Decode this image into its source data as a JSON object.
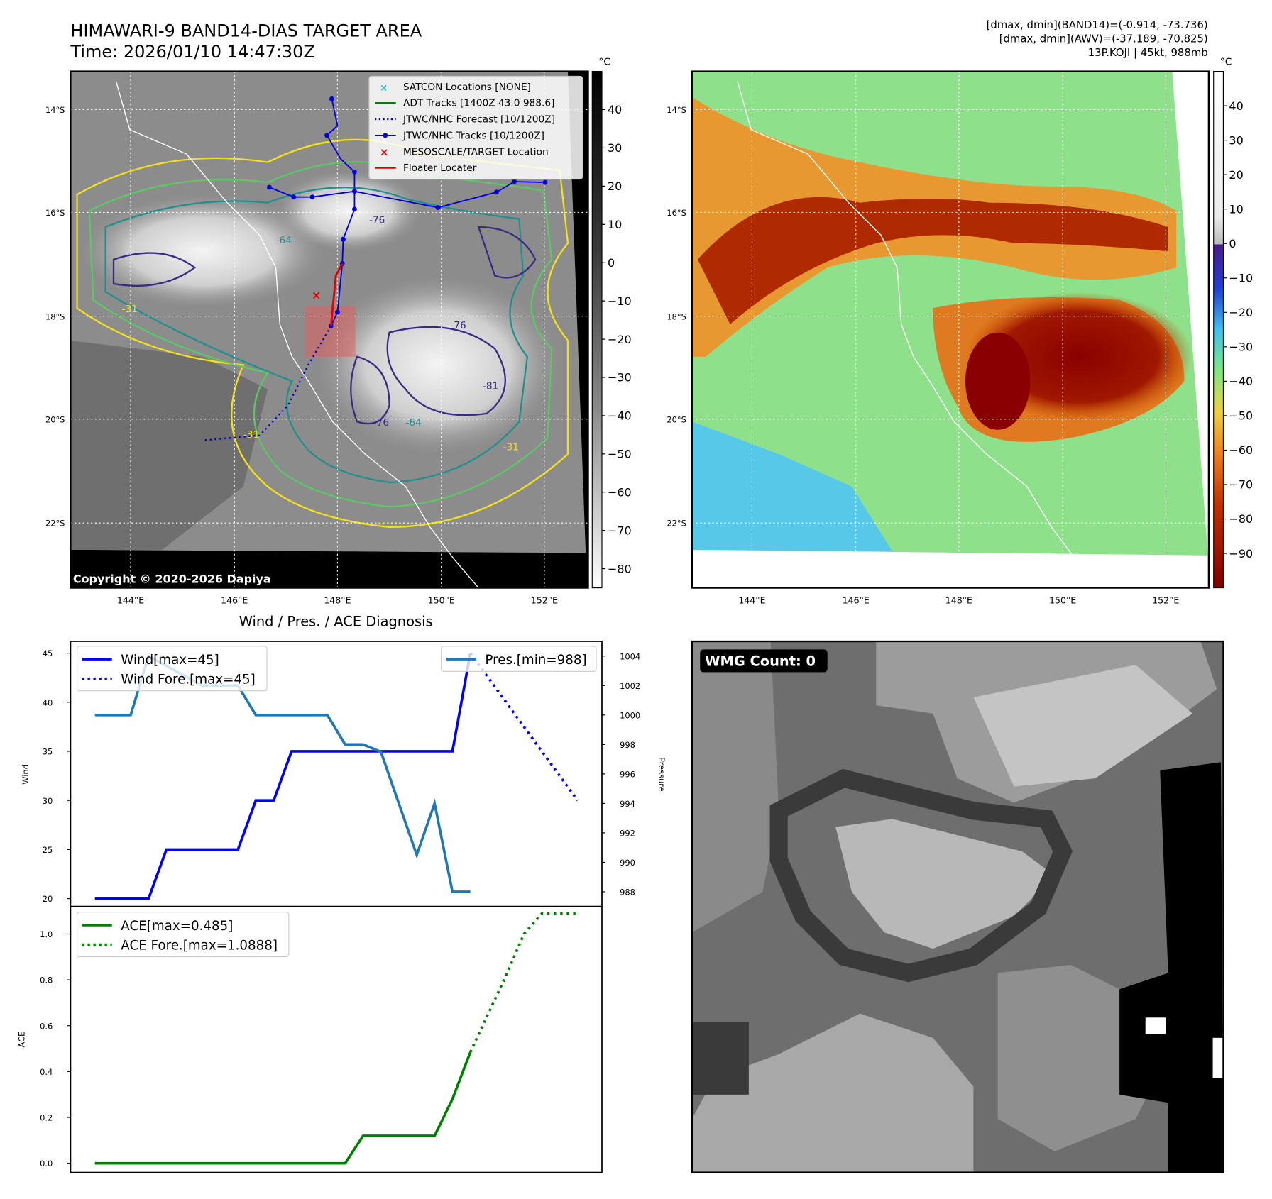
{
  "header": {
    "title_line1": "HIMAWARI-9 BAND14-DIAS TARGET AREA",
    "title_line2": "Time: 2026/01/10 14:47:30Z",
    "info_line1": "[dmax, dmin](BAND14)=(-0.914, -73.736)",
    "info_line2": "[dmax, dmin](AWV)=(-37.189, -70.825)",
    "info_line3": "13P.KOJI | 45kt, 988mb"
  },
  "maps": {
    "lat_labels": [
      "14°S",
      "16°S",
      "18°S",
      "20°S",
      "22°S"
    ],
    "lon_labels": [
      "144°E",
      "146°E",
      "148°E",
      "150°E",
      "152°E"
    ],
    "copyright": "Copyright © 2020-2026 Dapiya",
    "contour_labels": [
      "-31",
      "-64",
      "-76",
      "-31",
      "-64",
      "-76",
      "-81",
      "-31",
      "-76"
    ],
    "colors": {
      "gray_dark": "#000000",
      "cyan": "#17becf",
      "yellow": "#f5e11a",
      "green": "#5bc863",
      "teal": "#21908d",
      "navy": "#3b2a84",
      "track_blue": "#0000dd",
      "red": "#e00000"
    }
  },
  "legend": {
    "items": [
      "SATCON Locations [NONE]",
      "ADT Tracks [1400Z 43.0 988.6]",
      "JTWC/NHC Forecast [10/1200Z]",
      "JTWC/NHC Tracks [10/1200Z]",
      "MESOSCALE/TARGET Location",
      "Floater Locater"
    ]
  },
  "colorbar_gray": {
    "unit": "°C",
    "ticks": [
      "40",
      "30",
      "20",
      "10",
      "0",
      "−10",
      "−20",
      "−30",
      "−40",
      "−50",
      "−60",
      "−70",
      "−80"
    ],
    "range": [
      -85,
      50
    ]
  },
  "colorbar_color": {
    "unit": "°C",
    "ticks": [
      "40",
      "30",
      "20",
      "10",
      "0",
      "−10",
      "−20",
      "−30",
      "−40",
      "−50",
      "−60",
      "−70",
      "−80",
      "−90"
    ],
    "range": [
      -100,
      50
    ]
  },
  "wmg": {
    "label": "WMG Count: 0"
  },
  "chart_data": [
    {
      "type": "line",
      "title": "Wind / Pres. / ACE Diagnosis",
      "ylabel": "Wind",
      "ylabel_right": "Pressure",
      "ylim": [
        19.2,
        46.2
      ],
      "ylim_right": [
        987.0,
        1005.0
      ],
      "y_ticks": [
        20,
        25,
        30,
        35,
        40,
        45
      ],
      "y_ticks_right": [
        988,
        990,
        992,
        994,
        996,
        998,
        1000,
        1002,
        1004
      ],
      "series": [
        {
          "name": "Wind[max=45]",
          "color": "#0000ff",
          "x": [
            0,
            3,
            4,
            8,
            9,
            10,
            11,
            20,
            21
          ],
          "values": [
            20,
            20,
            25,
            25,
            30,
            30,
            35,
            35,
            45
          ]
        },
        {
          "name": "Wind Fore.[max=45]",
          "color": "#0000ff",
          "dashed": true,
          "x": [
            21,
            27
          ],
          "values": [
            45,
            30
          ]
        },
        {
          "name": "Pres.[min=988]",
          "color": "#1f77b4",
          "axis": "right",
          "x": [
            0,
            2,
            3,
            6,
            8,
            9,
            13,
            14,
            15,
            16,
            17,
            18,
            19,
            20,
            21
          ],
          "values": [
            1000,
            1000,
            1004,
            1002,
            1002,
            1000,
            1000,
            998,
            998,
            997.5,
            994,
            990.5,
            994,
            988,
            988
          ]
        }
      ]
    },
    {
      "type": "line",
      "ylabel": "ACE",
      "ylim": [
        -0.04,
        1.12
      ],
      "y_ticks": [
        0.0,
        0.2,
        0.4,
        0.6,
        0.8,
        1.0
      ],
      "series": [
        {
          "name": "ACE[max=0.485]",
          "color": "#008000",
          "x": [
            0,
            14,
            15,
            19,
            20,
            21
          ],
          "values": [
            0.0,
            0.0,
            0.12,
            0.12,
            0.28,
            0.485
          ]
        },
        {
          "name": "ACE Fore.[max=1.0888]",
          "color": "#008000",
          "dashed": true,
          "x": [
            21,
            23,
            24,
            25,
            27
          ],
          "values": [
            0.485,
            0.82,
            1.0,
            1.0888,
            1.0888
          ]
        }
      ]
    }
  ]
}
